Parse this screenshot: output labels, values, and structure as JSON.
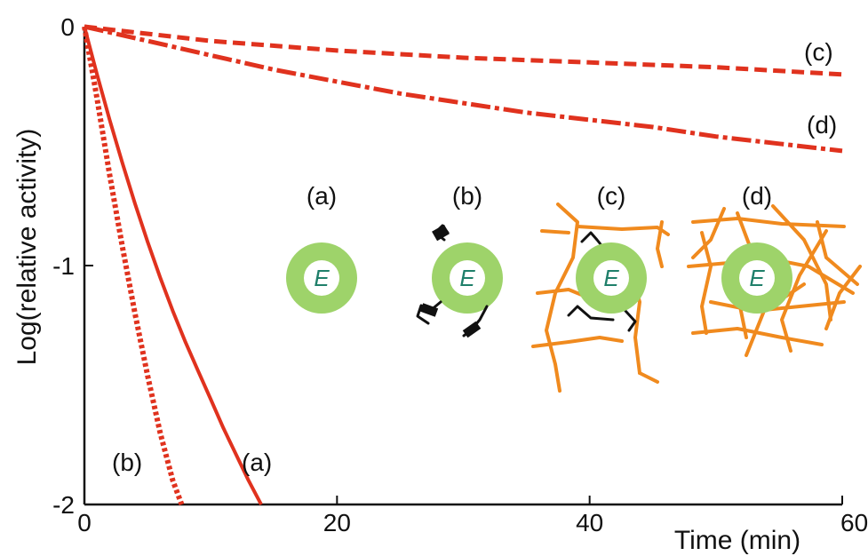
{
  "chart_data": {
    "type": "line",
    "xlabel": "Time (min)",
    "ylabel": "Log(relative activity)",
    "xlim": [
      0,
      60
    ],
    "ylim": [
      -2,
      0
    ],
    "x_ticks": [
      {
        "value": 0,
        "label": "0"
      },
      {
        "value": 20,
        "label": "20"
      },
      {
        "value": 40,
        "label": "40"
      },
      {
        "value": 60,
        "label": "60"
      }
    ],
    "y_ticks": [
      {
        "value": 0,
        "label": "0"
      },
      {
        "value": -1,
        "label": "-1"
      },
      {
        "value": -2,
        "label": "-2"
      }
    ],
    "grid": false,
    "series_color": "#e0321e",
    "series": [
      {
        "name": "(a)",
        "style": "solid",
        "x": [
          0,
          1,
          2,
          3,
          4,
          5,
          6,
          7,
          8,
          9,
          10,
          11,
          12,
          13,
          14
        ],
        "y": [
          0,
          -0.2,
          -0.39,
          -0.57,
          -0.74,
          -0.9,
          -1.05,
          -1.19,
          -1.32,
          -1.44,
          -1.56,
          -1.68,
          -1.79,
          -1.9,
          -2.0
        ]
      },
      {
        "name": "(b)",
        "style": "dotted",
        "x": [
          0,
          0.5,
          1,
          2,
          3,
          4,
          5,
          6,
          7,
          7.7
        ],
        "y": [
          0,
          -0.15,
          -0.3,
          -0.62,
          -0.92,
          -1.2,
          -1.46,
          -1.7,
          -1.9,
          -2.0
        ]
      },
      {
        "name": "(c)",
        "style": "dashed",
        "x": [
          0,
          10,
          20,
          30,
          40,
          50,
          60
        ],
        "y": [
          0,
          -0.06,
          -0.1,
          -0.13,
          -0.15,
          -0.17,
          -0.2
        ]
      },
      {
        "name": "(d)",
        "style": "dash-dot",
        "x": [
          0,
          5,
          10,
          15,
          20,
          25,
          30,
          35,
          40,
          45,
          50,
          55,
          60
        ],
        "y": [
          0,
          -0.06,
          -0.12,
          -0.18,
          -0.23,
          -0.28,
          -0.32,
          -0.36,
          -0.39,
          -0.42,
          -0.46,
          -0.49,
          -0.52
        ]
      }
    ]
  },
  "scheme": {
    "enzyme_letter": "E",
    "ring_color": "#9ed36a",
    "ring_inner_color": "#ffffff",
    "letter_color": "#1f7f6a",
    "fiber_color": "#f08a1e",
    "linker_color": "#111111",
    "items": [
      {
        "label": "(a)",
        "variant": "free"
      },
      {
        "label": "(b)",
        "variant": "crosslinked"
      },
      {
        "label": "(c)",
        "variant": "entrapped-crosslinked"
      },
      {
        "label": "(d)",
        "variant": "entrapped"
      }
    ]
  }
}
